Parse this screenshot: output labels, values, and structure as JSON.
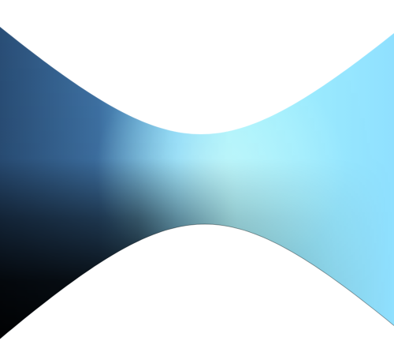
{
  "scene": {
    "subject": "hyperboloid-surface",
    "background_color": "#ffffff",
    "colors": {
      "highlight": "#a8f6ff",
      "light": "#7fd6ff",
      "mid": "#5aa6e0",
      "dark": "#2a4f78",
      "shadow": "#000000"
    }
  }
}
